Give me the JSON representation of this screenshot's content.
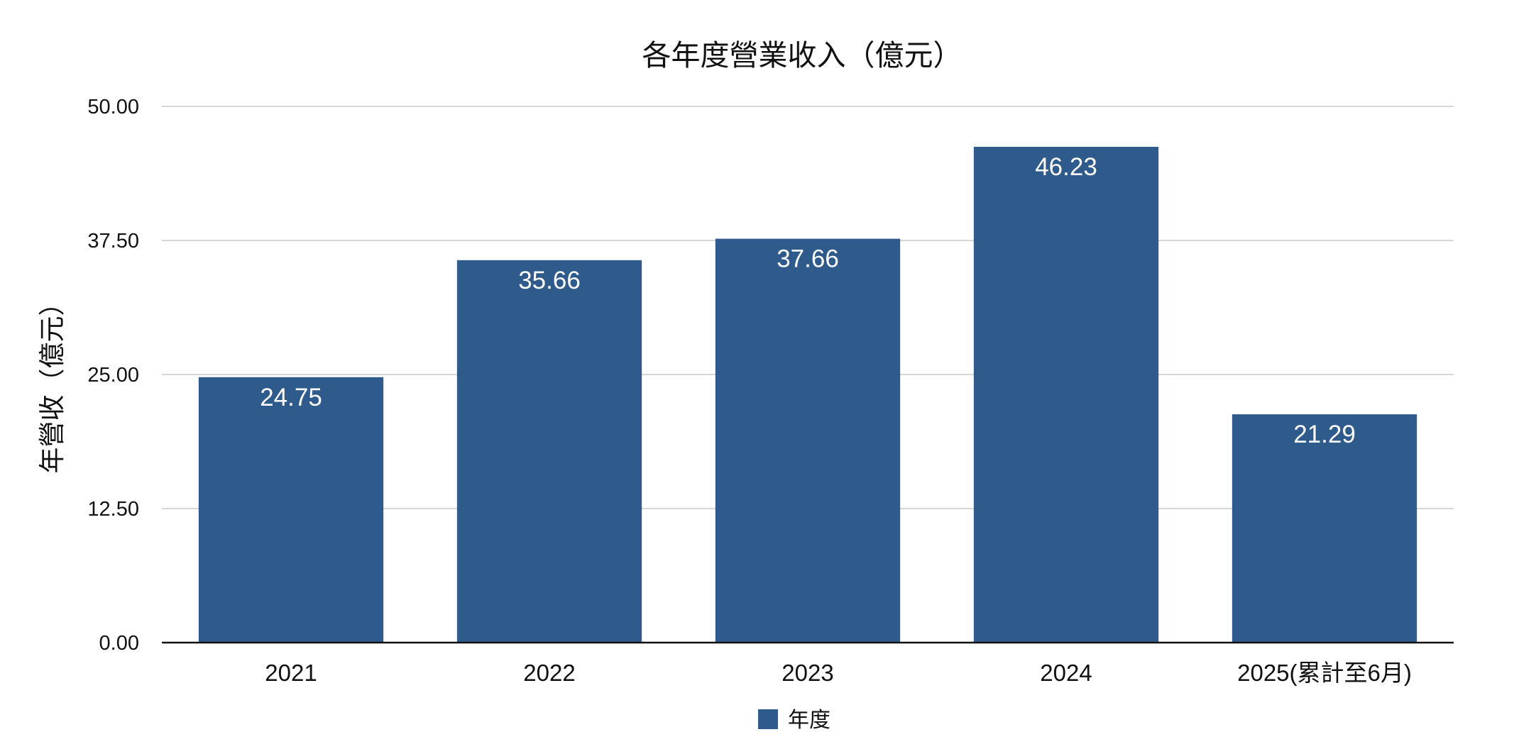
{
  "colors": {
    "bar": "#2f5a8c",
    "grid": "#c8c8c8",
    "axis": "#111111",
    "background": "#ffffff",
    "label": "#ffffff"
  },
  "chart_data": {
    "type": "bar",
    "title": "各年度營業收入（億元）",
    "xlabel": "",
    "ylabel": "年營收（億元）",
    "categories": [
      "2021",
      "2022",
      "2023",
      "2024",
      "2025(累計至6月)"
    ],
    "series": [
      {
        "name": "年度",
        "values": [
          24.75,
          35.66,
          37.66,
          46.23,
          21.29
        ]
      }
    ],
    "data_labels": [
      "24.75",
      "35.66",
      "37.66",
      "46.23",
      "21.29"
    ],
    "ylim": [
      0,
      50
    ],
    "yticks": [
      0,
      12.5,
      25,
      37.5,
      50
    ],
    "ytick_labels": [
      "0.00",
      "12.50",
      "25.00",
      "37.50",
      "50.00"
    ],
    "grid": true,
    "legend": {
      "position": "bottom-center",
      "entries": [
        "年度"
      ]
    }
  }
}
